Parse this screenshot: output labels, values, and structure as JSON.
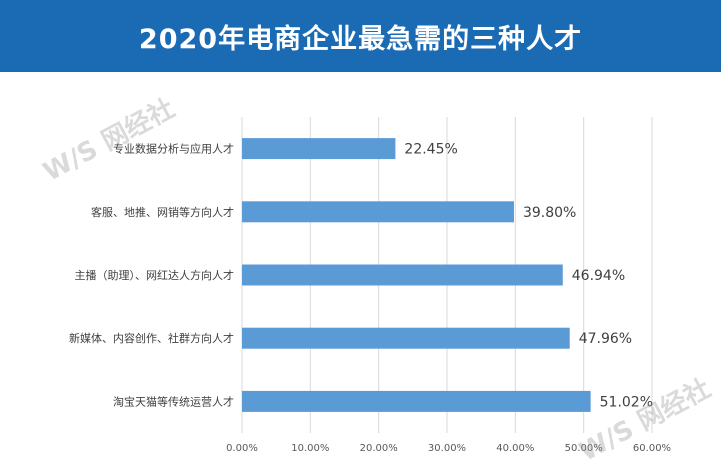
{
  "header": {
    "title": "2020年电商企业最急需的三种人才"
  },
  "watermark": {
    "text": "W/S 网经社"
  },
  "chart_data": {
    "type": "bar",
    "orientation": "horizontal",
    "title": "2020年电商企业最急需的三种人才",
    "categories": [
      "专业数据分析与应用人才",
      "客服、地推、网销等方向人才",
      "主播（助理）、网红达人方向人才",
      "新媒体、内容创作、社群方向人才",
      "淘宝天猫等传统运营人才"
    ],
    "values": [
      22.45,
      39.8,
      46.94,
      47.96,
      51.02
    ],
    "value_labels": [
      "22.45%",
      "39.80%",
      "46.94%",
      "47.96%",
      "51.02%"
    ],
    "xlim": [
      0,
      60
    ],
    "x_ticks": [
      "0.00%",
      "10.00%",
      "20.00%",
      "30.00%",
      "40.00%",
      "50.00%",
      "60.00%"
    ],
    "grid": true,
    "bar_color": "#5b9bd5"
  }
}
